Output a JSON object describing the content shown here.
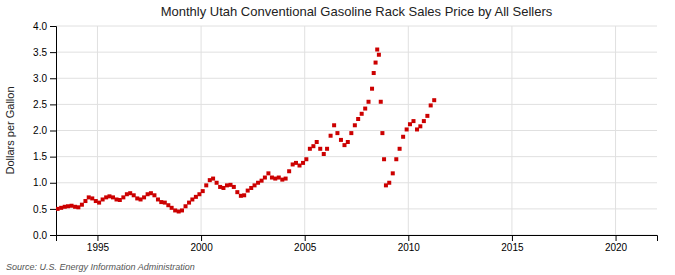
{
  "chart_data": {
    "type": "scatter",
    "title": "Monthly Utah Conventional Gasoline Rack Sales Price by All Sellers",
    "ylabel": "Dollars per Gallon",
    "annotations": [
      "Source: U.S. Energy Information Administration"
    ],
    "color": "#CC0000",
    "marker": "square",
    "grid": true,
    "xlim": [
      1993.0,
      2022.0
    ],
    "ylim": [
      0.0,
      4.0
    ],
    "xticks": [
      1995,
      2000,
      2005,
      2010,
      2015,
      2020
    ],
    "yticks": [
      {
        "value": 0.0,
        "label": "0.0"
      },
      0.5,
      {
        "value": 1.0,
        "label": "1.0"
      },
      1.5,
      {
        "value": 2.0,
        "label": "2.0"
      },
      2.5,
      {
        "value": 3.0,
        "label": "3.0"
      },
      3.5,
      {
        "value": 4.0,
        "label": "4.0"
      }
    ],
    "x": [
      1993.08,
      1993.25,
      1993.42,
      1993.58,
      1993.75,
      1993.92,
      1994.08,
      1994.25,
      1994.42,
      1994.58,
      1994.75,
      1994.92,
      1995.08,
      1995.25,
      1995.42,
      1995.58,
      1995.75,
      1995.92,
      1996.08,
      1996.25,
      1996.42,
      1996.58,
      1996.75,
      1996.92,
      1997.08,
      1997.25,
      1997.42,
      1997.58,
      1997.75,
      1997.92,
      1998.08,
      1998.25,
      1998.42,
      1998.58,
      1998.75,
      1998.92,
      1999.08,
      1999.25,
      1999.42,
      1999.58,
      1999.75,
      1999.92,
      2000.08,
      2000.25,
      2000.42,
      2000.58,
      2000.75,
      2000.92,
      2001.08,
      2001.25,
      2001.42,
      2001.58,
      2001.75,
      2001.92,
      2002.08,
      2002.25,
      2002.42,
      2002.58,
      2002.75,
      2002.92,
      2003.08,
      2003.25,
      2003.42,
      2003.58,
      2003.75,
      2003.92,
      2004.08,
      2004.25,
      2004.42,
      2004.58,
      2004.75,
      2004.92,
      2005.08,
      2005.25,
      2005.42,
      2005.58,
      2005.75,
      2005.92,
      2006.08,
      2006.25,
      2006.42,
      2006.58,
      2006.75,
      2006.92,
      2007.08,
      2007.25,
      2007.42,
      2007.58,
      2007.75,
      2007.92,
      2008.08,
      2008.25,
      2008.33,
      2008.42,
      2008.5,
      2008.58,
      2008.67,
      2008.75,
      2008.83,
      2008.92,
      2009.08,
      2009.25,
      2009.42,
      2009.58,
      2009.75,
      2009.92,
      2010.08,
      2010.25,
      2010.42,
      2010.58,
      2010.75,
      2010.92,
      2011.08,
      2011.25
    ],
    "values": [
      0.5,
      0.52,
      0.54,
      0.55,
      0.56,
      0.54,
      0.53,
      0.58,
      0.65,
      0.72,
      0.7,
      0.65,
      0.62,
      0.68,
      0.72,
      0.74,
      0.72,
      0.68,
      0.67,
      0.72,
      0.78,
      0.8,
      0.76,
      0.7,
      0.68,
      0.72,
      0.78,
      0.8,
      0.76,
      0.68,
      0.63,
      0.62,
      0.57,
      0.52,
      0.47,
      0.45,
      0.47,
      0.55,
      0.62,
      0.68,
      0.73,
      0.78,
      0.84,
      0.95,
      1.05,
      1.08,
      1.0,
      0.92,
      0.9,
      0.95,
      0.96,
      0.92,
      0.82,
      0.75,
      0.76,
      0.85,
      0.9,
      0.95,
      1.0,
      1.04,
      1.1,
      1.18,
      1.1,
      1.08,
      1.1,
      1.06,
      1.08,
      1.22,
      1.35,
      1.38,
      1.33,
      1.38,
      1.45,
      1.65,
      1.7,
      1.78,
      1.65,
      1.55,
      1.65,
      1.9,
      2.1,
      1.95,
      1.82,
      1.72,
      1.78,
      1.95,
      2.1,
      2.22,
      2.32,
      2.42,
      2.55,
      2.8,
      3.1,
      3.3,
      3.55,
      3.45,
      2.55,
      1.95,
      1.45,
      0.95,
      1.0,
      1.18,
      1.45,
      1.65,
      1.88,
      2.02,
      2.12,
      2.18,
      2.02,
      2.08,
      2.18,
      2.28,
      2.48,
      2.58
    ]
  }
}
